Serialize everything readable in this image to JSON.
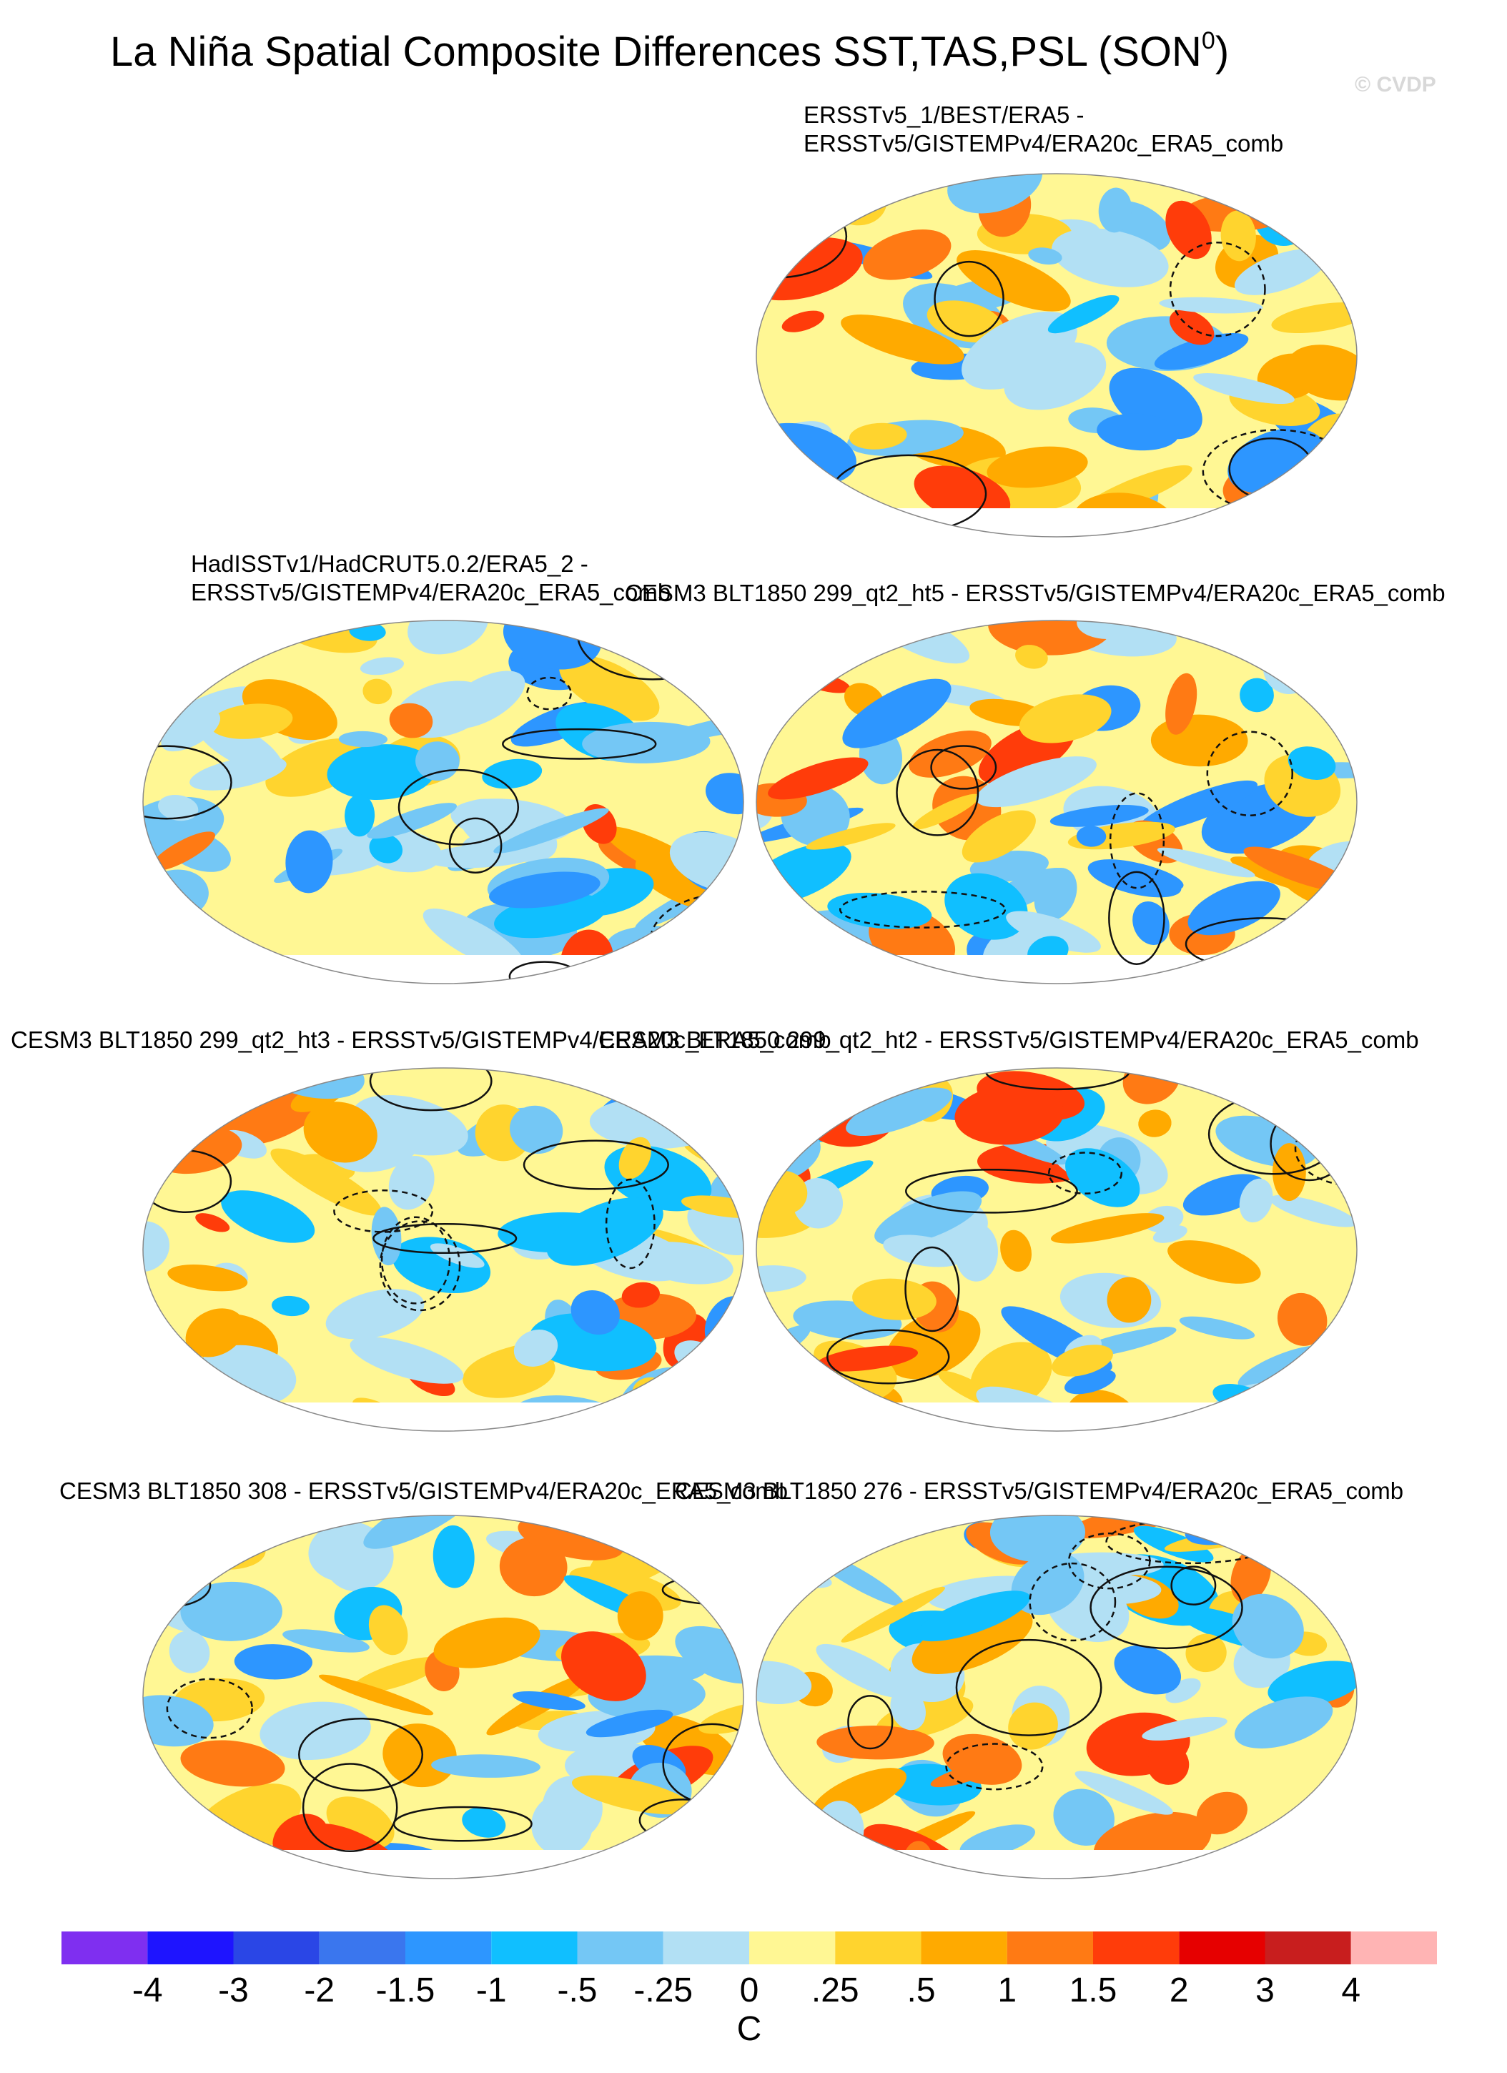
{
  "title": "La Niña Spatial Composite Differences SST,TAS,PSL (SON",
  "title_superscript": "0",
  "title_end": ")",
  "watermark": "© CVDP",
  "panels": [
    {
      "title_lines": [
        "ERSSTv5_1/BEST/ERA5 -",
        "ERSSTv5/GISTEMPv4/ERA20c_ERA5_comb"
      ]
    },
    {
      "title_lines": [
        "HadISSTv1/HadCRUT5.0.2/ERA5_2 -",
        "ERSSTv5/GISTEMPv4/ERA20c_ERA5_comb"
      ]
    },
    {
      "title_lines": [
        "CESM3 BLT1850 299_qt2_ht5 - ERSSTv5/GISTEMPv4/ERA20c_ERA5_comb"
      ]
    },
    {
      "title_lines": [
        "CESM3 BLT1850 299_qt2_ht3 - ERSSTv5/GISTEMPv4/ERA20c_ERA5_comb"
      ]
    },
    {
      "title_lines": [
        "CESM3 BLT1850 299_qt2_ht2 - ERSSTv5/GISTEMPv4/ERA20c_ERA5_comb"
      ]
    },
    {
      "title_lines": [
        "CESM3 BLT1850 308 - ERSSTv5/GISTEMPv4/ERA20c_ERA5_comb"
      ]
    },
    {
      "title_lines": [
        "CESM3 BLT1850 276 - ERSSTv5/GISTEMPv4/ERA20c_ERA5_comb"
      ]
    }
  ],
  "colorbar": {
    "colors": [
      "#7f2ff0",
      "#1e14ff",
      "#2a46e6",
      "#3a76ee",
      "#2d96ff",
      "#10bfff",
      "#74c7f5",
      "#b2e0f4",
      "#fff794",
      "#ffd42e",
      "#ffaa00",
      "#ff7a14",
      "#ff3c0a",
      "#e60000",
      "#c81e1e",
      "#ffb4b4"
    ],
    "ticks": [
      -4,
      -3,
      -2,
      -1.5,
      -1,
      {
        "value": -0.5,
        "label": "-.5"
      },
      {
        "value": -0.25,
        "label": "-.25"
      },
      0,
      {
        "value": 0.25,
        "label": ".25"
      },
      {
        "value": 0.5,
        "label": ".5"
      },
      1,
      1.5,
      2,
      3,
      4
    ],
    "units": "C"
  }
}
